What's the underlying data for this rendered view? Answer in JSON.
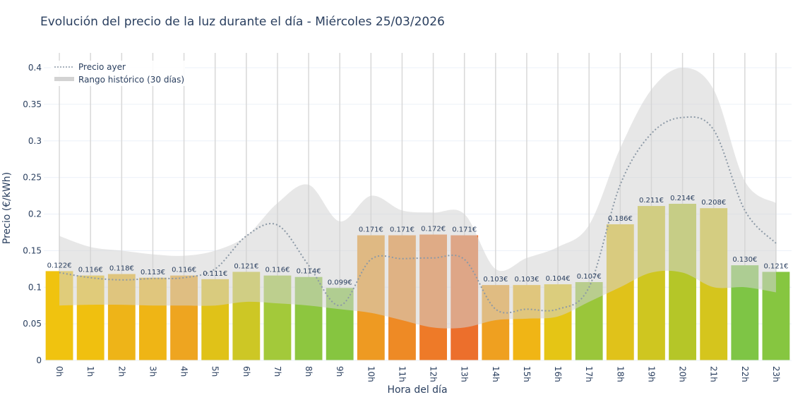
{
  "chart_data": {
    "type": "bar",
    "title": "Evolución del precio de la luz durante el día - Miércoles 25/03/2026",
    "xlabel": "Hora del día",
    "ylabel": "Precio (€/kWh)",
    "ylim": [
      0,
      0.42
    ],
    "yticks": [
      0,
      0.05,
      0.1,
      0.15,
      0.2,
      0.25,
      0.3,
      0.35,
      0.4
    ],
    "grid": true,
    "legend_placement": "top-left",
    "categories": [
      "0h",
      "1h",
      "2h",
      "3h",
      "4h",
      "5h",
      "6h",
      "7h",
      "8h",
      "9h",
      "10h",
      "11h",
      "12h",
      "13h",
      "14h",
      "15h",
      "16h",
      "17h",
      "18h",
      "19h",
      "20h",
      "21h",
      "22h",
      "23h"
    ],
    "values": [
      0.122,
      0.116,
      0.118,
      0.113,
      0.116,
      0.111,
      0.121,
      0.116,
      0.114,
      0.099,
      0.171,
      0.171,
      0.172,
      0.171,
      0.103,
      0.103,
      0.104,
      0.107,
      0.186,
      0.211,
      0.214,
      0.208,
      0.13,
      0.121
    ],
    "labels": [
      "0.122€",
      "0.116€",
      "0.118€",
      "0.113€",
      "0.116€",
      "0.111€",
      "0.121€",
      "0.116€",
      "0.114€",
      "0.099€",
      "0.171€",
      "0.171€",
      "0.172€",
      "0.171€",
      "0.103€",
      "0.103€",
      "0.104€",
      "0.107€",
      "0.186€",
      "0.211€",
      "0.214€",
      "0.208€",
      "0.130€",
      "0.121€"
    ],
    "bar_colors": [
      "#f0c30f",
      "#f0c00f",
      "#eeb418",
      "#efb515",
      "#eea520",
      "#e0c218",
      "#cdc725",
      "#a3c93a",
      "#8dc63f",
      "#86c540",
      "#ee9a22",
      "#ee8a25",
      "#ee7a28",
      "#ec6f2c",
      "#efa020",
      "#f0b515",
      "#e5c515",
      "#9ac63a",
      "#e0c21a",
      "#cfc620",
      "#b5c628",
      "#d5c51d",
      "#7ec545",
      "#86c640"
    ],
    "series": [
      {
        "name": "Precio ayer",
        "type": "line",
        "style": "dotted",
        "color": "#8c99a6",
        "values": [
          0.12,
          0.113,
          0.11,
          0.112,
          0.113,
          0.125,
          0.17,
          0.185,
          0.13,
          0.075,
          0.138,
          0.139,
          0.14,
          0.138,
          0.07,
          0.07,
          0.07,
          0.1,
          0.24,
          0.31,
          0.332,
          0.315,
          0.205,
          0.16
        ]
      },
      {
        "name": "Rango histórico (30 días)",
        "type": "band",
        "color": "#d3d3d3",
        "upper": [
          0.17,
          0.155,
          0.15,
          0.145,
          0.143,
          0.15,
          0.17,
          0.215,
          0.24,
          0.19,
          0.225,
          0.205,
          0.202,
          0.2,
          0.125,
          0.14,
          0.155,
          0.185,
          0.29,
          0.37,
          0.4,
          0.37,
          0.245,
          0.215
        ],
        "lower": [
          0.075,
          0.076,
          0.076,
          0.075,
          0.075,
          0.075,
          0.08,
          0.078,
          0.075,
          0.07,
          0.065,
          0.055,
          0.045,
          0.045,
          0.055,
          0.057,
          0.06,
          0.08,
          0.1,
          0.12,
          0.12,
          0.1,
          0.1,
          0.093
        ]
      }
    ]
  }
}
